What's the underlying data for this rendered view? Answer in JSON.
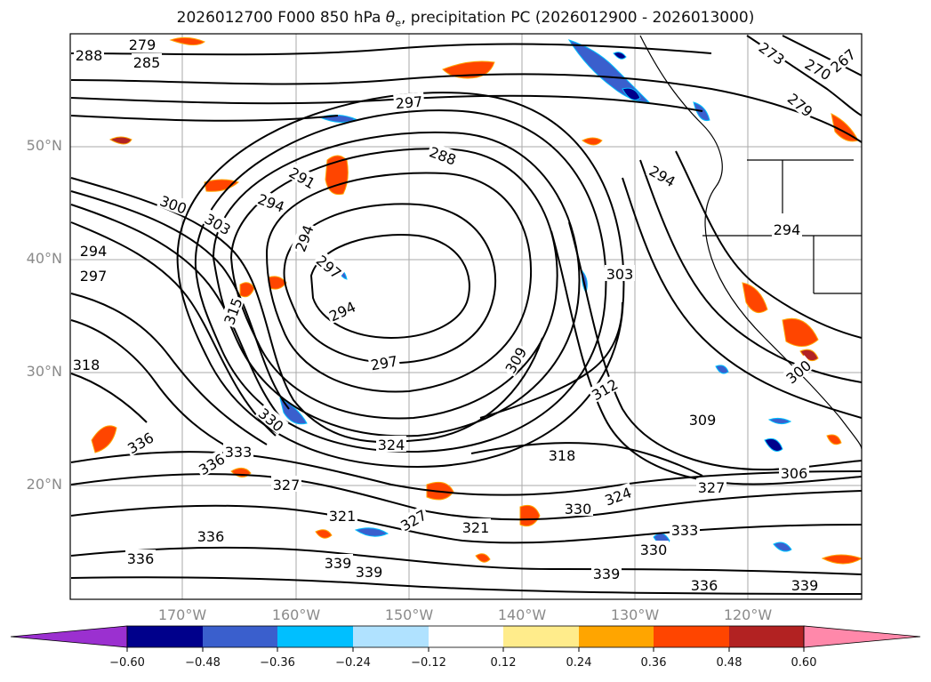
{
  "title": {
    "prefix": "2026012700 F000 850 hPa ",
    "theta": "θ",
    "theta_sub": "e",
    "suffix": ", precipitation PC (2026012900 - 2026013000)"
  },
  "lat_labels": [
    "50°N",
    "40°N",
    "30°N",
    "20°N"
  ],
  "lon_labels": [
    "170°W",
    "160°W",
    "150°W",
    "140°W",
    "130°W",
    "120°W"
  ],
  "colorbar": {
    "tick_labels": [
      "−0.60",
      "−0.48",
      "−0.36",
      "−0.24",
      "−0.12",
      "0.12",
      "0.24",
      "0.36",
      "0.48",
      "0.60"
    ],
    "colors": [
      "#9b30d0",
      "#00008b",
      "#3a5fcd",
      "#00bfff",
      "#b0e2ff",
      "#ffffff",
      "#ffec8b",
      "#ffa500",
      "#ff4500",
      "#b22222",
      "#ff88aa"
    ]
  },
  "contour_labels": [
    {
      "text": "279",
      "pos": [
        160,
        50
      ],
      "rot": 0
    },
    {
      "text": "285",
      "pos": [
        165,
        70
      ],
      "rot": 0
    },
    {
      "text": "288",
      "pos": [
        100,
        62
      ],
      "rot": 0
    },
    {
      "text": "297",
      "pos": [
        460,
        115
      ],
      "rot": -5
    },
    {
      "text": "288",
      "pos": [
        498,
        175
      ],
      "rot": 20
    },
    {
      "text": "291",
      "pos": [
        340,
        200
      ],
      "rot": 30
    },
    {
      "text": "294",
      "pos": [
        305,
        228
      ],
      "rot": 20
    },
    {
      "text": "300",
      "pos": [
        195,
        230
      ],
      "rot": 20
    },
    {
      "text": "303",
      "pos": [
        245,
        252
      ],
      "rot": 30
    },
    {
      "text": "294",
      "pos": [
        342,
        268
      ],
      "rot": -70
    },
    {
      "text": "297",
      "pos": [
        370,
        300
      ],
      "rot": 40
    },
    {
      "text": "294",
      "pos": [
        385,
        350
      ],
      "rot": -25
    },
    {
      "text": "297",
      "pos": [
        432,
        408
      ],
      "rot": -10
    },
    {
      "text": "315",
      "pos": [
        262,
        350
      ],
      "rot": -70
    },
    {
      "text": "294",
      "pos": [
        105,
        282
      ],
      "rot": 0
    },
    {
      "text": "297",
      "pos": [
        105,
        310
      ],
      "rot": 0
    },
    {
      "text": "318",
      "pos": [
        97,
        410
      ],
      "rot": 0
    },
    {
      "text": "330",
      "pos": [
        305,
        472
      ],
      "rot": 40
    },
    {
      "text": "324",
      "pos": [
        440,
        500
      ],
      "rot": 0
    },
    {
      "text": "309",
      "pos": [
        580,
        405
      ],
      "rot": -60
    },
    {
      "text": "312",
      "pos": [
        680,
        438
      ],
      "rot": -30
    },
    {
      "text": "303",
      "pos": [
        697,
        308
      ],
      "rot": 0
    },
    {
      "text": "309",
      "pos": [
        790,
        472
      ],
      "rot": 0
    },
    {
      "text": "318",
      "pos": [
        632,
        512
      ],
      "rot": 0
    },
    {
      "text": "327",
      "pos": [
        800,
        548
      ],
      "rot": 0
    },
    {
      "text": "324",
      "pos": [
        695,
        558
      ],
      "rot": -20
    },
    {
      "text": "330",
      "pos": [
        650,
        572
      ],
      "rot": 0
    },
    {
      "text": "321",
      "pos": [
        385,
        580
      ],
      "rot": 0
    },
    {
      "text": "327",
      "pos": [
        465,
        585
      ],
      "rot": -30
    },
    {
      "text": "321",
      "pos": [
        535,
        593
      ],
      "rot": 0
    },
    {
      "text": "333",
      "pos": [
        770,
        596
      ],
      "rot": 0
    },
    {
      "text": "336",
      "pos": [
        158,
        498
      ],
      "rot": -30
    },
    {
      "text": "333",
      "pos": [
        268,
        508
      ],
      "rot": 0
    },
    {
      "text": "336",
      "pos": [
        238,
        522
      ],
      "rot": -30
    },
    {
      "text": "327",
      "pos": [
        322,
        545
      ],
      "rot": 0
    },
    {
      "text": "339",
      "pos": [
        415,
        643
      ],
      "rot": 0
    },
    {
      "text": "339",
      "pos": [
        682,
        645
      ],
      "rot": 0
    },
    {
      "text": "336",
      "pos": [
        792,
        658
      ],
      "rot": 0
    },
    {
      "text": "339",
      "pos": [
        905,
        658
      ],
      "rot": 0
    },
    {
      "text": "306",
      "pos": [
        893,
        532
      ],
      "rot": 0
    },
    {
      "text": "300",
      "pos": [
        898,
        418
      ],
      "rot": -40
    },
    {
      "text": "294",
      "pos": [
        885,
        258
      ],
      "rot": 0
    },
    {
      "text": "273",
      "pos": [
        868,
        60
      ],
      "rot": 35
    },
    {
      "text": "270",
      "pos": [
        920,
        78
      ],
      "rot": 30
    },
    {
      "text": "267",
      "pos": [
        948,
        68
      ],
      "rot": -40
    },
    {
      "text": "279",
      "pos": [
        900,
        118
      ],
      "rot": 40
    },
    {
      "text": "294",
      "pos": [
        745,
        198
      ],
      "rot": 30
    },
    {
      "text": "336",
      "pos": [
        158,
        628
      ],
      "rot": 0
    },
    {
      "text": "339",
      "pos": [
        380,
        633
      ],
      "rot": 0
    },
    {
      "text": "336",
      "pos": [
        237,
        603
      ],
      "rot": 0
    },
    {
      "text": "330",
      "pos": [
        735,
        618
      ],
      "rot": 0
    }
  ]
}
